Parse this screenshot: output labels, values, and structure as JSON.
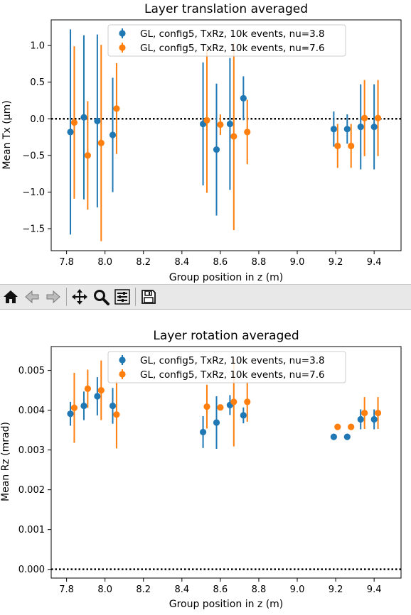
{
  "toolbar": {
    "icons": [
      "home-icon",
      "back-icon",
      "forward-icon",
      "pan-icon",
      "zoom-icon",
      "configure-subplots-icon",
      "save-icon"
    ]
  },
  "chart_data": [
    {
      "type": "scatter",
      "title": "Layer translation averaged",
      "xlabel": "Group position in z (m)",
      "ylabel": "Mean Tx (μm)",
      "xlim": [
        7.72,
        9.54
      ],
      "ylim": [
        -1.8,
        1.35
      ],
      "xticks": [
        7.8,
        8.0,
        8.2,
        8.4,
        8.6,
        8.8,
        9.0,
        9.2,
        9.4
      ],
      "xtick_labels": [
        "7.8",
        "8.0",
        "8.2",
        "8.4",
        "8.6",
        "8.8",
        "9.0",
        "9.2",
        "9.4"
      ],
      "yticks": [
        -1.5,
        -1.0,
        -0.5,
        0.0,
        0.5,
        1.0
      ],
      "ytick_labels": [
        "−1.5",
        "−1.0",
        "−0.5",
        "0.0",
        "0.5",
        "1.0"
      ],
      "reference_line": 0.0,
      "legend_position": "top-center",
      "series": [
        {
          "name": "GL, config5, TxRz, 10k events, nu=3.8",
          "color": "#1f77b4",
          "x": [
            7.82,
            7.89,
            7.96,
            8.04,
            8.51,
            8.58,
            8.65,
            8.72,
            9.19,
            9.26,
            9.33,
            9.4
          ],
          "y": [
            -0.18,
            0.02,
            -0.03,
            -0.22,
            -0.07,
            -0.42,
            -0.07,
            0.28,
            -0.14,
            -0.14,
            -0.11,
            -0.11
          ],
          "yerr": [
            1.4,
            1.12,
            1.18,
            0.78,
            0.84,
            0.9,
            0.9,
            0.3,
            0.24,
            0.2,
            0.58,
            0.58
          ]
        },
        {
          "name": "GL, config5, TxRz, 10k events, nu=7.6",
          "color": "#ff7f0e",
          "x": [
            7.84,
            7.91,
            7.98,
            8.06,
            8.53,
            8.6,
            8.67,
            8.74,
            9.21,
            9.28,
            9.35,
            9.42
          ],
          "y": [
            -0.05,
            -0.5,
            -0.33,
            0.14,
            -0.02,
            -0.08,
            -0.24,
            -0.18,
            -0.37,
            -0.37,
            0.01,
            0.01
          ],
          "yerr": [
            1.04,
            0.74,
            1.34,
            0.62,
            0.99,
            0.14,
            1.28,
            0.44,
            0.3,
            0.3,
            0.52,
            0.52
          ]
        }
      ]
    },
    {
      "type": "scatter",
      "title": "Layer rotation averaged",
      "xlabel": "Group position in z (m)",
      "ylabel": "Mean Rz (mrad)",
      "xlim": [
        7.72,
        9.54
      ],
      "ylim": [
        -0.00022,
        0.0056
      ],
      "xticks": [
        7.8,
        8.0,
        8.2,
        8.4,
        8.6,
        8.8,
        9.0,
        9.2,
        9.4
      ],
      "xtick_labels": [
        "7.8",
        "8.0",
        "8.2",
        "8.4",
        "8.6",
        "8.8",
        "9.0",
        "9.2",
        "9.4"
      ],
      "yticks": [
        0.0,
        0.001,
        0.002,
        0.003,
        0.004,
        0.005
      ],
      "ytick_labels": [
        "0.000",
        "0.001",
        "0.002",
        "0.003",
        "0.004",
        "0.005"
      ],
      "reference_line": 0.0,
      "legend_position": "top-center",
      "series": [
        {
          "name": "GL, config5, TxRz, 10k events, nu=3.8",
          "color": "#1f77b4",
          "x": [
            7.82,
            7.89,
            7.96,
            8.04,
            8.51,
            8.58,
            8.65,
            8.72,
            9.19,
            9.26,
            9.33,
            9.4
          ],
          "y": [
            0.00391,
            0.00411,
            0.00435,
            0.00411,
            0.00345,
            0.00369,
            0.00413,
            0.00387,
            0.00333,
            0.00333,
            0.00377,
            0.00377
          ],
          "yerr": [
            0.0003,
            0.00036,
            0.00048,
            0.00045,
            0.0004,
            0.00066,
            0.00025,
            0.0002,
            0.0,
            0.0,
            0.00025,
            0.00025
          ]
        },
        {
          "name": "GL, config5, TxRz, 10k events, nu=7.6",
          "color": "#ff7f0e",
          "x": [
            7.84,
            7.91,
            7.98,
            8.06,
            8.53,
            8.6,
            8.67,
            8.74,
            9.21,
            9.28,
            9.35,
            9.42
          ],
          "y": [
            0.00406,
            0.00454,
            0.0045,
            0.00389,
            0.00409,
            0.00407,
            0.00421,
            0.00421,
            0.00358,
            0.00358,
            0.00393,
            0.00393
          ],
          "yerr": [
            0.00088,
            0.00048,
            0.00075,
            0.00085,
            0.00055,
            0.0,
            0.00112,
            0.0005,
            0.0,
            0.0,
            0.0004,
            0.0004
          ]
        }
      ]
    }
  ]
}
